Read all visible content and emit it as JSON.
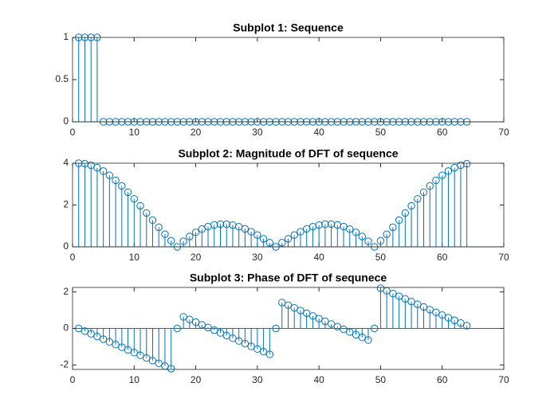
{
  "chart_data": [
    {
      "type": "stem",
      "title": "Subplot 1: Sequence",
      "color": "#0072bd",
      "x": [
        1,
        2,
        3,
        4,
        5,
        6,
        7,
        8,
        9,
        10,
        11,
        12,
        13,
        14,
        15,
        16,
        17,
        18,
        19,
        20,
        21,
        22,
        23,
        24,
        25,
        26,
        27,
        28,
        29,
        30,
        31,
        32,
        33,
        34,
        35,
        36,
        37,
        38,
        39,
        40,
        41,
        42,
        43,
        44,
        45,
        46,
        47,
        48,
        49,
        50,
        51,
        52,
        53,
        54,
        55,
        56,
        57,
        58,
        59,
        60,
        61,
        62,
        63,
        64
      ],
      "values": [
        1,
        1,
        1,
        1,
        0,
        0,
        0,
        0,
        0,
        0,
        0,
        0,
        0,
        0,
        0,
        0,
        0,
        0,
        0,
        0,
        0,
        0,
        0,
        0,
        0,
        0,
        0,
        0,
        0,
        0,
        0,
        0,
        0,
        0,
        0,
        0,
        0,
        0,
        0,
        0,
        0,
        0,
        0,
        0,
        0,
        0,
        0,
        0,
        0,
        0,
        0,
        0,
        0,
        0,
        0,
        0,
        0,
        0,
        0,
        0,
        0,
        0,
        0,
        0
      ],
      "xlim": [
        0,
        70
      ],
      "xticks": [
        0,
        10,
        20,
        30,
        40,
        50,
        60,
        70
      ],
      "ylim": [
        0,
        1
      ],
      "yticks": [
        0,
        0.5,
        1
      ]
    },
    {
      "type": "stem",
      "title": "Subplot 2: Magnitude of DFT of sequence",
      "color": "#0072bd",
      "x": [
        1,
        2,
        3,
        4,
        5,
        6,
        7,
        8,
        9,
        10,
        11,
        12,
        13,
        14,
        15,
        16,
        17,
        18,
        19,
        20,
        21,
        22,
        23,
        24,
        25,
        26,
        27,
        28,
        29,
        30,
        31,
        32,
        33,
        34,
        35,
        36,
        37,
        38,
        39,
        40,
        41,
        42,
        43,
        44,
        45,
        46,
        47,
        48,
        49,
        50,
        51,
        52,
        53,
        54,
        55,
        56,
        57,
        58,
        59,
        60,
        61,
        62,
        63,
        64
      ],
      "values": [
        4,
        3.976,
        3.904,
        3.786,
        3.625,
        3.422,
        3.183,
        2.911,
        2.613,
        2.294,
        1.96,
        1.617,
        1.273,
        0.933,
        0.603,
        0.291,
        0,
        0.263,
        0.495,
        0.692,
        0.85,
        0.969,
        1.048,
        1.085,
        1.082,
        1.042,
        0.965,
        0.857,
        0.721,
        0.562,
        0.385,
        0.195,
        0,
        0.195,
        0.385,
        0.562,
        0.721,
        0.857,
        0.965,
        1.042,
        1.082,
        1.085,
        1.048,
        0.969,
        0.85,
        0.692,
        0.495,
        0.263,
        0,
        0.291,
        0.603,
        0.933,
        1.273,
        1.617,
        1.96,
        2.294,
        2.613,
        2.911,
        3.183,
        3.422,
        3.625,
        3.786,
        3.904,
        3.976
      ],
      "xlim": [
        0,
        70
      ],
      "xticks": [
        0,
        10,
        20,
        30,
        40,
        50,
        60,
        70
      ],
      "ylim": [
        0,
        4
      ],
      "yticks": [
        0,
        2,
        4
      ]
    },
    {
      "type": "stem",
      "title": "Subplot 3: Phase of DFT of sequnece",
      "color": "#0072bd",
      "x": [
        1,
        2,
        3,
        4,
        5,
        6,
        7,
        8,
        9,
        10,
        11,
        12,
        13,
        14,
        15,
        16,
        17,
        18,
        19,
        20,
        21,
        22,
        23,
        24,
        25,
        26,
        27,
        28,
        29,
        30,
        31,
        32,
        33,
        34,
        35,
        36,
        37,
        38,
        39,
        40,
        41,
        42,
        43,
        44,
        45,
        46,
        47,
        48,
        49,
        50,
        51,
        52,
        53,
        54,
        55,
        56,
        57,
        58,
        59,
        60,
        61,
        62,
        63,
        64
      ],
      "values": [
        0,
        -0.147,
        -0.295,
        -0.442,
        -0.589,
        -0.736,
        -0.884,
        -1.031,
        -1.178,
        -1.325,
        -1.473,
        -1.62,
        -1.767,
        -1.914,
        -2.062,
        -2.209,
        0,
        0.638,
        0.491,
        0.344,
        0.196,
        0.049,
        -0.098,
        -0.245,
        -0.393,
        -0.54,
        -0.687,
        -0.834,
        -0.982,
        -1.129,
        -1.276,
        -1.424,
        0,
        1.424,
        1.276,
        1.129,
        0.982,
        0.834,
        0.687,
        0.54,
        0.393,
        0.245,
        0.098,
        -0.049,
        -0.196,
        -0.344,
        -0.491,
        -0.638,
        0,
        2.209,
        2.062,
        1.914,
        1.767,
        1.62,
        1.473,
        1.325,
        1.178,
        1.031,
        0.884,
        0.736,
        0.589,
        0.442,
        0.295,
        0.147
      ],
      "xlim": [
        0,
        70
      ],
      "xticks": [
        0,
        10,
        20,
        30,
        40,
        50,
        60,
        70
      ],
      "ylim": [
        -2.25,
        2.25
      ],
      "yticks": [
        -2,
        0,
        2
      ]
    }
  ]
}
